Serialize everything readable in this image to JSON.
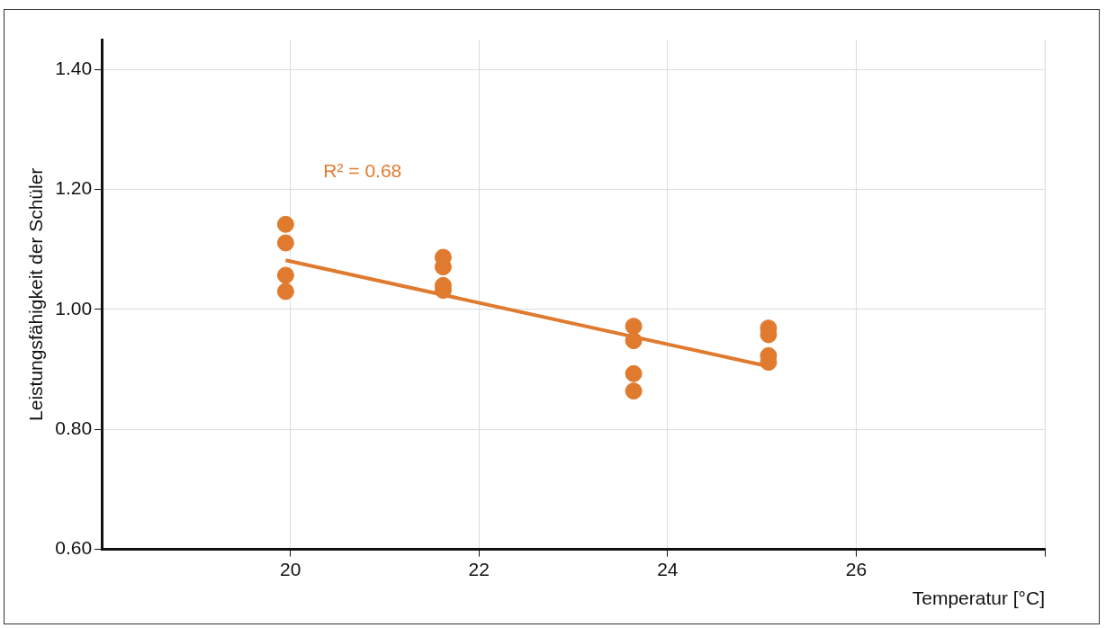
{
  "chart_data": {
    "type": "scatter",
    "xlabel": "Temperatur [°C]",
    "ylabel": "Leistungsfähigkeit der Schüler",
    "annotations": [
      "R² = 0.68"
    ],
    "xlim": [
      18,
      28
    ],
    "xticks": [
      20,
      22,
      24,
      26,
      {
        "value": 28,
        "label": null
      }
    ],
    "ylim": [
      0.6,
      1.45
    ],
    "yticks": [
      {
        "value": 0.6,
        "label": "0.60"
      },
      {
        "value": 0.8,
        "label": "0.80"
      },
      {
        "value": 1.0,
        "label": "1.00"
      },
      {
        "value": 1.2,
        "label": "1.20"
      },
      {
        "value": 1.4,
        "label": "1.40"
      }
    ],
    "grid": true,
    "legend": false,
    "series": [
      {
        "marker": "circle",
        "color": "#e07a2e",
        "x": [
          19.95,
          19.95,
          19.95,
          19.95,
          21.62,
          21.62,
          21.62,
          21.62,
          23.64,
          23.64,
          23.64,
          23.64,
          25.07,
          25.07,
          25.07,
          25.07
        ],
        "values": [
          1.142,
          1.111,
          1.057,
          1.03,
          1.087,
          1.071,
          1.04,
          1.032,
          0.972,
          0.948,
          0.893,
          0.864,
          0.969,
          0.958,
          0.923,
          0.912
        ]
      },
      {
        "type": "line",
        "color": "#e07a2e",
        "x": [
          19.95,
          25.07
        ],
        "values": [
          1.082,
          0.905
        ]
      }
    ]
  }
}
